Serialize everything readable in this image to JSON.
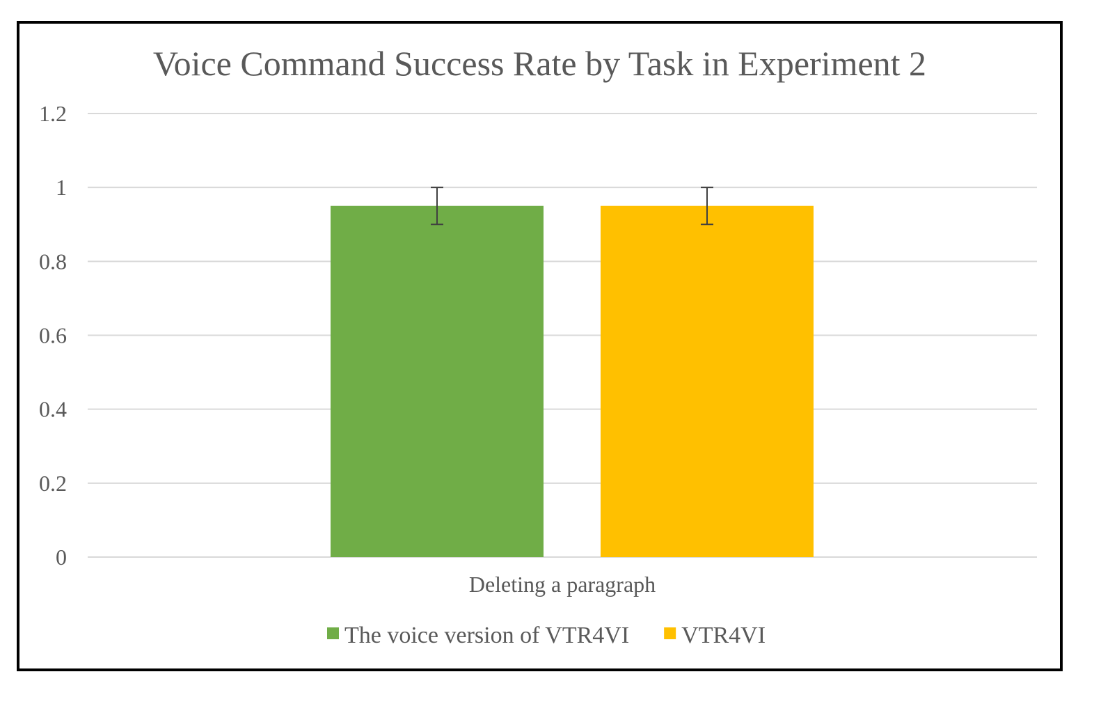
{
  "chart_data": {
    "type": "bar",
    "title": "Voice Command Success Rate by Task in Experiment 2",
    "xlabel": "",
    "ylabel": "",
    "categories": [
      "Deleting a paragraph"
    ],
    "series": [
      {
        "name": "The voice version of VTR4VI",
        "values": [
          0.95
        ],
        "error": [
          0.05
        ],
        "color": "#70AD47"
      },
      {
        "name": "VTR4VI",
        "values": [
          0.95
        ],
        "error": [
          0.05
        ],
        "color": "#FFC000"
      }
    ],
    "ylim": [
      0,
      1.2
    ],
    "yticks": [
      "0",
      "0.2",
      "0.4",
      "0.6",
      "0.8",
      "1",
      "1.2"
    ],
    "grid": true,
    "legend_position": "bottom-center"
  }
}
